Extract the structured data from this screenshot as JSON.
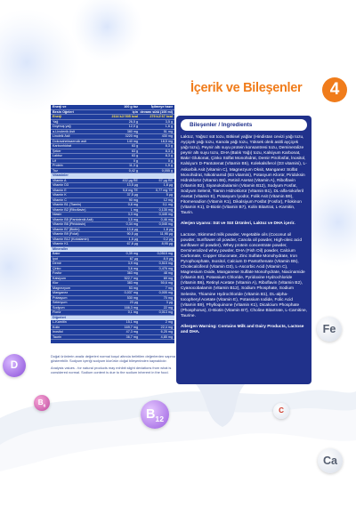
{
  "header": {
    "title": "İçerik ve Bileşenler",
    "badge": "4"
  },
  "nutrition_table": {
    "header": [
      [
        "Enerji ve",
        "100 g toz",
        "İçilmeye hazır"
      ],
      [
        "Besin Öğeleri",
        "için",
        "devamı sütü (100 ml)"
      ]
    ],
    "energy": [
      "Enerji",
      "2114 kJ/ 505 kcal",
      "279 kJ/ 67 kcal"
    ],
    "groups": [
      {
        "rows": [
          [
            "Yağ",
            "26,5 g",
            "3,5 g"
          ],
          [
            "Doymuş yağ",
            "12,0 g",
            "1,6 g"
          ],
          [
            "α-Linolenik Asit",
            "380 mg",
            "51 mg"
          ],
          [
            "Linoleik Asit",
            "3220 mg",
            "430 mg"
          ],
          [
            "Dokosaheksaenoik asit",
            "140 mg",
            "18,5 mg"
          ],
          [
            "Karbonhidrat",
            "63 g",
            "8,3 g"
          ],
          [
            "Şeker",
            "63 g",
            "8,3 g"
          ],
          [
            "Laktoz",
            "63 g",
            "8,3 g"
          ],
          [
            "Lif",
            "0 g",
            "0 g"
          ],
          [
            "Protein",
            "11,3 g",
            "1,5 g"
          ],
          [
            "Tuz",
            "0,42 g",
            "0,055 g"
          ]
        ]
      },
      {
        "title": "Vitaminler",
        "rows": [
          [
            "Vitamin A",
            "432 µg RE",
            "57 µg RE"
          ],
          [
            "Vitamin D3",
            "13,5 µg",
            "1,8 µg"
          ],
          [
            "Vitamin E",
            "5,8 mg TE",
            "0,77 mg TE"
          ],
          [
            "Vitamin K",
            "37,5 µg",
            "5 µg"
          ],
          [
            "Vitamin C",
            "90 mg",
            "12 mg"
          ],
          [
            "Vitamin B1 (Tiamin)",
            "0,8 mg",
            "0,1 mg"
          ],
          [
            "Vitamin B2 (Riboflavin)",
            "1 mg",
            "0,135 mg"
          ],
          [
            "Niasin",
            "3,3 mg",
            "0,445 mg"
          ],
          [
            "Vitamin B5 (Pantotenik Asit)",
            "3,5 mg",
            "0,46 mg"
          ],
          [
            "Vitamin B6 (Piridoksin)",
            "0,34 mg",
            "0,045 mg"
          ],
          [
            "Vitamin B7 (Biotin)",
            "13,6 µg",
            "1,8 µg"
          ],
          [
            "Vitamin B9 (Folat)",
            "90,5 µg",
            "11,95 µg"
          ],
          [
            "Vitamin B12 (Kobalamin)",
            "1,5 µg",
            "0,2 µg"
          ],
          [
            "Vitamin K1",
            "67,8 µg",
            "8,95 µg"
          ]
        ]
      },
      {
        "title": "Mineraller",
        "rows": [
          [
            "Bakır",
            "0,39 mg",
            "0,0515 mg"
          ],
          [
            "İyot",
            "67 µg",
            "8,9 µg"
          ],
          [
            "Demir",
            "3,9 mg",
            "0,515 mg"
          ],
          [
            "Çinko",
            "3,6 mg",
            "0,476 mg"
          ],
          [
            "Fosfor",
            "363 mg",
            "48 mg"
          ],
          [
            "Kalsiyum",
            "522,7 mg",
            "69 mg"
          ],
          [
            "Klor",
            "383 mg",
            "50,6 mg"
          ],
          [
            "Magnezyum",
            "53 mg",
            "7 mg"
          ],
          [
            "Manganez",
            "0,037 mg",
            "0,005 mg"
          ],
          [
            "Potasyum",
            "530 mg",
            "70 mg"
          ],
          [
            "Selenyum",
            "23 µg",
            "3 µg"
          ],
          [
            "Sodyum",
            "166,3 mg",
            "22 mg"
          ],
          [
            "Florür",
            "0,1 mg",
            "0,013 mg"
          ]
        ]
      },
      {
        "title": "Diğerleri",
        "rows": [
          [
            "L-Karnitin",
            "15,1 mg",
            "2 mg"
          ],
          [
            "Kolin",
            "169,7 mg",
            "22,4 mg"
          ],
          [
            "İnositol",
            "47,3 mg",
            "6,25 mg"
          ],
          [
            "Taurin",
            "36,7 mg",
            "4,85 mg"
          ]
        ]
      }
    ]
  },
  "notes": [
    "Doğal ürünlerin analiz değerleri normal koşul altında belirtilen değerlerden sapma gösterebilir. Sodyum içeriği sodyum klorürün doğal bileşeninden kaynaklıdır.",
    "Analysis values - for natural products may exhibit slight deviations from what is considered normal. Sodium content is due to the sodium inherent in the food."
  ],
  "ingredients": {
    "title": "Bileşenler / Ingredients",
    "paragraphs": [
      {
        "text": "Laktoz, Yağsız süt tozu, Bitkisel yağlar (Hindistan cevizi yağı tozu, Ayçiçek yağı tozu, Kanola yağı tozu, Yüksek oleik asitli ayçiçek yağı tozu), Peynir altı suyu protein konsantresi tozu, Demineralize peynir altı suyu tozu, DHA (Balık Yağı) tozu, Kalsiyum Karbonat, Bakır Glukonat, Çinko Sülfat Monohidrat, Demir Pirofosfat, İnositol, Kalsiyum D-Pantotenat (Vitamin B5), Kolekalsiferol (D3 vitamini), L-Askorbik Asit (Vitamin C), Magnezyum Oksit, Manganez Sülfat Monohidrat, Nikotinamid (B3 vitamini), Potasyum Klorür, Piridoksin Hidroklorür (Vitamin B6), Retinil Asetat (Vitamin A), Riboflavin (Vitamin B2), Siyanokobalamin (Vitamin B12), Sodyum Fosfat, Sodyum Selenit, Tiamin Hidroklorür (Vitamin B1), DL-alfa-tokoferil Asetat (Vitamin E), Potasyum İyodür, Folik Asit (Vitamin B9), Fitomenadion (Vitamin K1), Dikalsiyum Fosfat (Fosfor), Filokinon (Vitamin K1), D-Biotin (Vitamin B7), Kolin Bitartrat, L-Karnitin, Taurin.",
        "warning": "Alerjen Uyarısı: Süt ve Süt Ürünleri, Laktoz ve DHA içerir."
      },
      {
        "text": "Lactose, Skimmed milk powder, Vegetable oils (Coconut oil powder, Sunflower oil powder, Canola oil powder, High-oleic acid sunflower oil powder), Whey protein concentrate powder, Demineralized whey powder, DHA (Fish Oil) powder, Calcium Carbonate, Copper Gluconate, Zinc Sulfate Monohydrate, Iron Pyrophosphate, Inositol, Calcium D-Pantothenate (Vitamin B5), Cholecalciferol (Vitamin D3), L-Ascorbic Acid (Vitamin C), Magnesium Oxide, Manganese Sulfate Monohydrate, Niacinamide (Vitamin B3), Potassium Chloride, Pyridoxine Hydrochloride (Vitamin B6), Retinyl Acetate (Vitamin A), Riboflavin (Vitamin B2), Cyanocobalamin (Vitamin B12), Sodium Phosphate, Sodium Selenite, Thiamine Hydrochloride (Vitamin B1), DL-alpha-tocopheryl Acetate (Vitamin E), Potassium Iodide, Folic Acid (Vitamin B9), Phylloquinone (Vitamin K1), Dicalcium Phosphate (Phosphorus), D-Biotin (Vitamin B7), Choline Bitartrate, L-Carnitine, Taurine.",
        "warning": "Allergen Warning: Contains Milk and Dairy Products, Lactose and DHA."
      }
    ]
  },
  "bubbles": [
    {
      "label": "D"
    },
    {
      "label": "B",
      "sub": "6"
    },
    {
      "label": "B",
      "sub": "12"
    },
    {
      "label": "C"
    },
    {
      "label": "Fe"
    },
    {
      "label": "Ca"
    }
  ]
}
